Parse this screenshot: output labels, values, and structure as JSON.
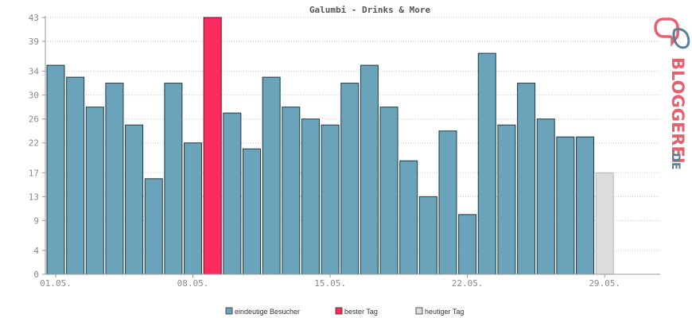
{
  "chart_data": {
    "type": "bar",
    "title": "Galumbi - Drinks & More",
    "xlabel": "",
    "ylabel": "",
    "ylim": [
      0,
      43
    ],
    "y_ticks": [
      0,
      4,
      9,
      13,
      17,
      22,
      26,
      30,
      34,
      39,
      43
    ],
    "x_tick_labels": [
      {
        "label": "01.05.",
        "day": 1
      },
      {
        "label": "08.05.",
        "day": 8
      },
      {
        "label": "15.05.",
        "day": 15
      },
      {
        "label": "22.05.",
        "day": 22
      },
      {
        "label": "29.05.",
        "day": 29
      }
    ],
    "grid": true,
    "legend_position": "bottom-center",
    "days": [
      1,
      2,
      3,
      4,
      5,
      6,
      7,
      8,
      9,
      10,
      11,
      12,
      13,
      14,
      15,
      16,
      17,
      18,
      19,
      20,
      21,
      22,
      23,
      24,
      25,
      26,
      27,
      28,
      29,
      30,
      31
    ],
    "values": [
      35,
      33,
      28,
      32,
      25,
      16,
      32,
      22,
      43,
      27,
      21,
      33,
      28,
      26,
      25,
      32,
      35,
      28,
      19,
      13,
      24,
      10,
      37,
      25,
      32,
      26,
      23,
      23,
      17,
      0,
      0
    ],
    "bar_kind": [
      "normal",
      "normal",
      "normal",
      "normal",
      "normal",
      "normal",
      "normal",
      "normal",
      "best",
      "normal",
      "normal",
      "normal",
      "normal",
      "normal",
      "normal",
      "normal",
      "normal",
      "normal",
      "normal",
      "normal",
      "normal",
      "normal",
      "normal",
      "normal",
      "normal",
      "normal",
      "normal",
      "normal",
      "today",
      "none",
      "none"
    ],
    "series": [
      {
        "name": "eindeutige Besucher",
        "color": "#6aa3ba"
      },
      {
        "name": "bester Tag",
        "color": "#ff2b5e"
      },
      {
        "name": "heutiger Tag",
        "color": "#dcdcdc"
      }
    ]
  },
  "logo": {
    "text": "BLOGGEREI",
    "suffix": ".DE",
    "color_main": "#e8606f",
    "color_suffix": "#5b7e98"
  }
}
